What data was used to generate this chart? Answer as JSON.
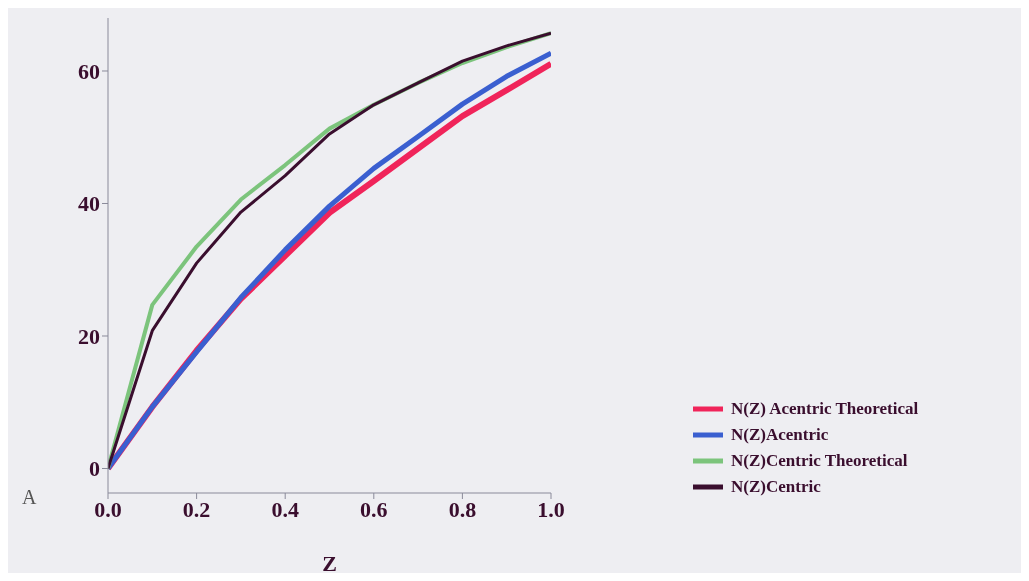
{
  "chart_data": {
    "type": "line",
    "xlabel": "Z",
    "annotations": [
      "A"
    ],
    "x": [
      0,
      0.1,
      0.2,
      0.3,
      0.4,
      0.5,
      0.6,
      0.7,
      0.8,
      0.9,
      1.0
    ],
    "xlim": [
      0,
      1
    ],
    "xticks": [
      {
        "value": 0,
        "label": "0.0"
      },
      {
        "value": 0.2,
        "label": "0.2"
      },
      {
        "value": 0.4,
        "label": "0.4"
      },
      {
        "value": 0.6,
        "label": "0.6"
      },
      {
        "value": 0.8,
        "label": "0.8"
      },
      {
        "value": 1,
        "label": "1.0"
      }
    ],
    "ylim": [
      -3.7,
      68
    ],
    "yticks": [
      0,
      20,
      40,
      60
    ],
    "series": [
      {
        "name": "N(Z) Acentric Theoretical",
        "color": "#f0245a",
        "values": [
          0,
          9.3,
          17.8,
          25.6,
          32.1,
          38.6,
          43.4,
          48.3,
          53.2,
          57.1,
          61.1
        ]
      },
      {
        "name": "N(Z)Acentric",
        "color": "#3a5fd0",
        "values": [
          0,
          9.3,
          17.6,
          25.8,
          33.0,
          39.6,
          45.3,
          50.1,
          55.0,
          59.2,
          62.7
        ]
      },
      {
        "name": "N(Z)Centric Theoretical",
        "color": "#7cc47c",
        "values": [
          0,
          24.7,
          33.5,
          40.6,
          45.8,
          51.3,
          54.9,
          58.2,
          61.2,
          63.6,
          65.7
        ]
      },
      {
        "name": "N(Z)Centric",
        "color": "#3a0e2e",
        "values": [
          0,
          20.8,
          31.0,
          38.7,
          44.2,
          50.5,
          54.9,
          58.2,
          61.5,
          63.8,
          65.7
        ]
      }
    ],
    "grid": false,
    "legend": "bottom right",
    "marker": "none",
    "line_style": "solid"
  }
}
